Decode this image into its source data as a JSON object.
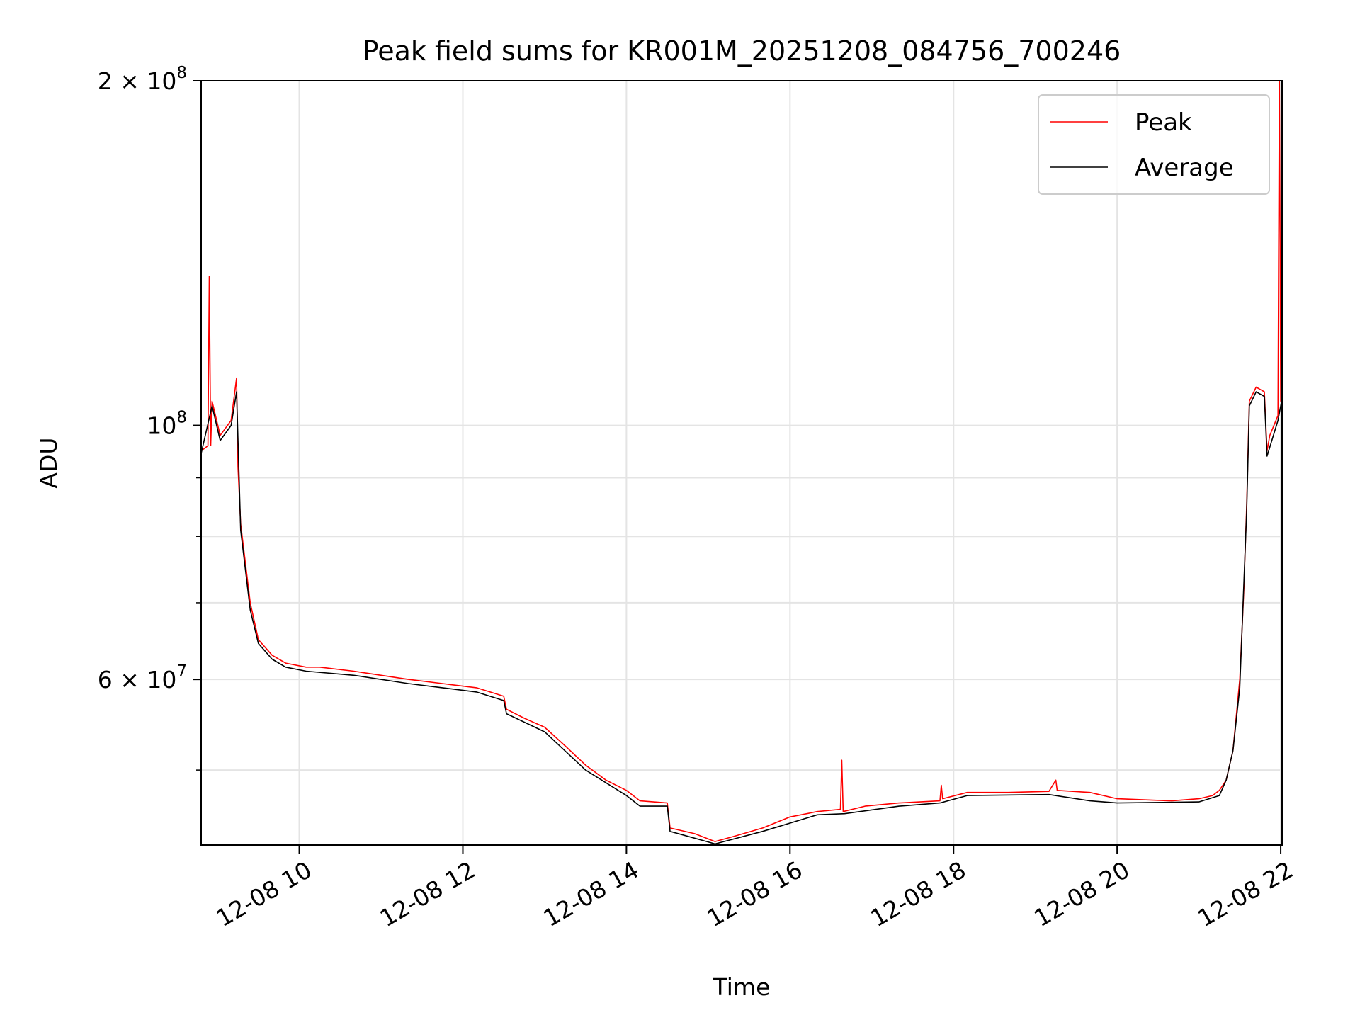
{
  "chart_data": {
    "type": "line",
    "title": "Peak field sums for KR001M_20251208_084756_700246",
    "xlabel": "Time",
    "ylabel": "ADU",
    "x_axis": {
      "kind": "datetime",
      "range": [
        "2025-12-08 08:48",
        "2025-12-08 22:01"
      ],
      "ticks": [
        "2025-12-08 10:00",
        "2025-12-08 12:00",
        "2025-12-08 14:00",
        "2025-12-08 16:00",
        "2025-12-08 18:00",
        "2025-12-08 20:00",
        "2025-12-08 22:00"
      ],
      "tick_labels": [
        "12-08 10",
        "12-08 12",
        "12-08 14",
        "12-08 16",
        "12-08 18",
        "12-08 20",
        "12-08 22"
      ]
    },
    "y_axis": {
      "scale": "log",
      "range": [
        43000000,
        200000000
      ],
      "major_ticks": [
        {
          "value": 100000000,
          "mantissa": "",
          "base": "10",
          "exp": "8"
        },
        {
          "value": 200000000,
          "mantissa": "2 × ",
          "base": "10",
          "exp": "8"
        },
        {
          "value": 60000000,
          "mantissa": "6 × ",
          "base": "10",
          "exp": "7"
        }
      ],
      "minor_ticks": [
        50000000,
        70000000,
        80000000,
        90000000
      ]
    },
    "grid": true,
    "legend": {
      "position": "top-right",
      "entries": [
        "Peak",
        "Average"
      ]
    },
    "series": [
      {
        "name": "Peak",
        "color": "#ff0000",
        "x": [
          "2025-12-08 08:48",
          "2025-12-08 08:53",
          "2025-12-08 08:54",
          "2025-12-08 08:55",
          "2025-12-08 08:56",
          "2025-12-08 09:02",
          "2025-12-08 09:10",
          "2025-12-08 09:14",
          "2025-12-08 09:15",
          "2025-12-08 09:17",
          "2025-12-08 09:24",
          "2025-12-08 09:30",
          "2025-12-08 09:35",
          "2025-12-08 09:40",
          "2025-12-08 09:50",
          "2025-12-08 10:05",
          "2025-12-08 10:15",
          "2025-12-08 10:40",
          "2025-12-08 11:00",
          "2025-12-08 11:20",
          "2025-12-08 11:45",
          "2025-12-08 12:10",
          "2025-12-08 12:20",
          "2025-12-08 12:30",
          "2025-12-08 12:32",
          "2025-12-08 12:45",
          "2025-12-08 13:00",
          "2025-12-08 13:15",
          "2025-12-08 13:30",
          "2025-12-08 13:45",
          "2025-12-08 14:00",
          "2025-12-08 14:10",
          "2025-12-08 14:30",
          "2025-12-08 14:32",
          "2025-12-08 14:50",
          "2025-12-08 15:05",
          "2025-12-08 15:20",
          "2025-12-08 15:40",
          "2025-12-08 16:00",
          "2025-12-08 16:20",
          "2025-12-08 16:37",
          "2025-12-08 16:38",
          "2025-12-08 16:39",
          "2025-12-08 16:55",
          "2025-12-08 17:20",
          "2025-12-08 17:50",
          "2025-12-08 17:51",
          "2025-12-08 17:52",
          "2025-12-08 18:10",
          "2025-12-08 18:40",
          "2025-12-08 19:10",
          "2025-12-08 19:15",
          "2025-12-08 19:16",
          "2025-12-08 19:40",
          "2025-12-08 20:00",
          "2025-12-08 20:40",
          "2025-12-08 21:00",
          "2025-12-08 21:10",
          "2025-12-08 21:15",
          "2025-12-08 21:20",
          "2025-12-08 21:25",
          "2025-12-08 21:30",
          "2025-12-08 21:33",
          "2025-12-08 21:35",
          "2025-12-08 21:37",
          "2025-12-08 21:42",
          "2025-12-08 21:48",
          "2025-12-08 21:50",
          "2025-12-08 21:52",
          "2025-12-08 21:58",
          "2025-12-08 21:59",
          "2025-12-08 22:00",
          "2025-12-08 22:01"
        ],
        "values": [
          95000000,
          96000000,
          135000000,
          96000000,
          105000000,
          98000000,
          101000000,
          110000000,
          92000000,
          82000000,
          70000000,
          65000000,
          64000000,
          63000000,
          62000000,
          61500000,
          61500000,
          61000000,
          60500000,
          60000000,
          59500000,
          59000000,
          58500000,
          58000000,
          56500000,
          55500000,
          54500000,
          52500000,
          50500000,
          49000000,
          48000000,
          47000000,
          46800000,
          44500000,
          44000000,
          43300000,
          43800000,
          44500000,
          45500000,
          46000000,
          46200000,
          51000000,
          46000000,
          46500000,
          46800000,
          47000000,
          48500000,
          47200000,
          47800000,
          47800000,
          47900000,
          49000000,
          48000000,
          47800000,
          47200000,
          47000000,
          47200000,
          47500000,
          48000000,
          49000000,
          52000000,
          60000000,
          72000000,
          85000000,
          105000000,
          108000000,
          107000000,
          95000000,
          98000000,
          102000000,
          200000000,
          105000000,
          106000000
        ]
      },
      {
        "name": "Average",
        "color": "#000000",
        "x": [
          "2025-12-08 08:48",
          "2025-12-08 08:56",
          "2025-12-08 09:02",
          "2025-12-08 09:10",
          "2025-12-08 09:14",
          "2025-12-08 09:17",
          "2025-12-08 09:24",
          "2025-12-08 09:30",
          "2025-12-08 09:35",
          "2025-12-08 09:40",
          "2025-12-08 09:50",
          "2025-12-08 10:05",
          "2025-12-08 10:40",
          "2025-12-08 11:20",
          "2025-12-08 11:45",
          "2025-12-08 12:10",
          "2025-12-08 12:30",
          "2025-12-08 12:32",
          "2025-12-08 13:00",
          "2025-12-08 13:30",
          "2025-12-08 14:00",
          "2025-12-08 14:10",
          "2025-12-08 14:30",
          "2025-12-08 14:32",
          "2025-12-08 15:05",
          "2025-12-08 15:40",
          "2025-12-08 16:20",
          "2025-12-08 16:40",
          "2025-12-08 17:20",
          "2025-12-08 17:50",
          "2025-12-08 18:10",
          "2025-12-08 19:10",
          "2025-12-08 19:40",
          "2025-12-08 20:00",
          "2025-12-08 21:00",
          "2025-12-08 21:15",
          "2025-12-08 21:20",
          "2025-12-08 21:25",
          "2025-12-08 21:30",
          "2025-12-08 21:35",
          "2025-12-08 21:37",
          "2025-12-08 21:42",
          "2025-12-08 21:48",
          "2025-12-08 21:50",
          "2025-12-08 21:58",
          "2025-12-08 22:01"
        ],
        "values": [
          94500000,
          104000000,
          97000000,
          100000000,
          107000000,
          81000000,
          69000000,
          64500000,
          63500000,
          62500000,
          61500000,
          61000000,
          60500000,
          59500000,
          59000000,
          58500000,
          57500000,
          56000000,
          54000000,
          50000000,
          47500000,
          46500000,
          46500000,
          44200000,
          43100000,
          44200000,
          45700000,
          45800000,
          46500000,
          46800000,
          47500000,
          47600000,
          47000000,
          46800000,
          46900000,
          47500000,
          49000000,
          52000000,
          59000000,
          84000000,
          104000000,
          107000000,
          106000000,
          94000000,
          101000000,
          105500000
        ]
      }
    ]
  }
}
